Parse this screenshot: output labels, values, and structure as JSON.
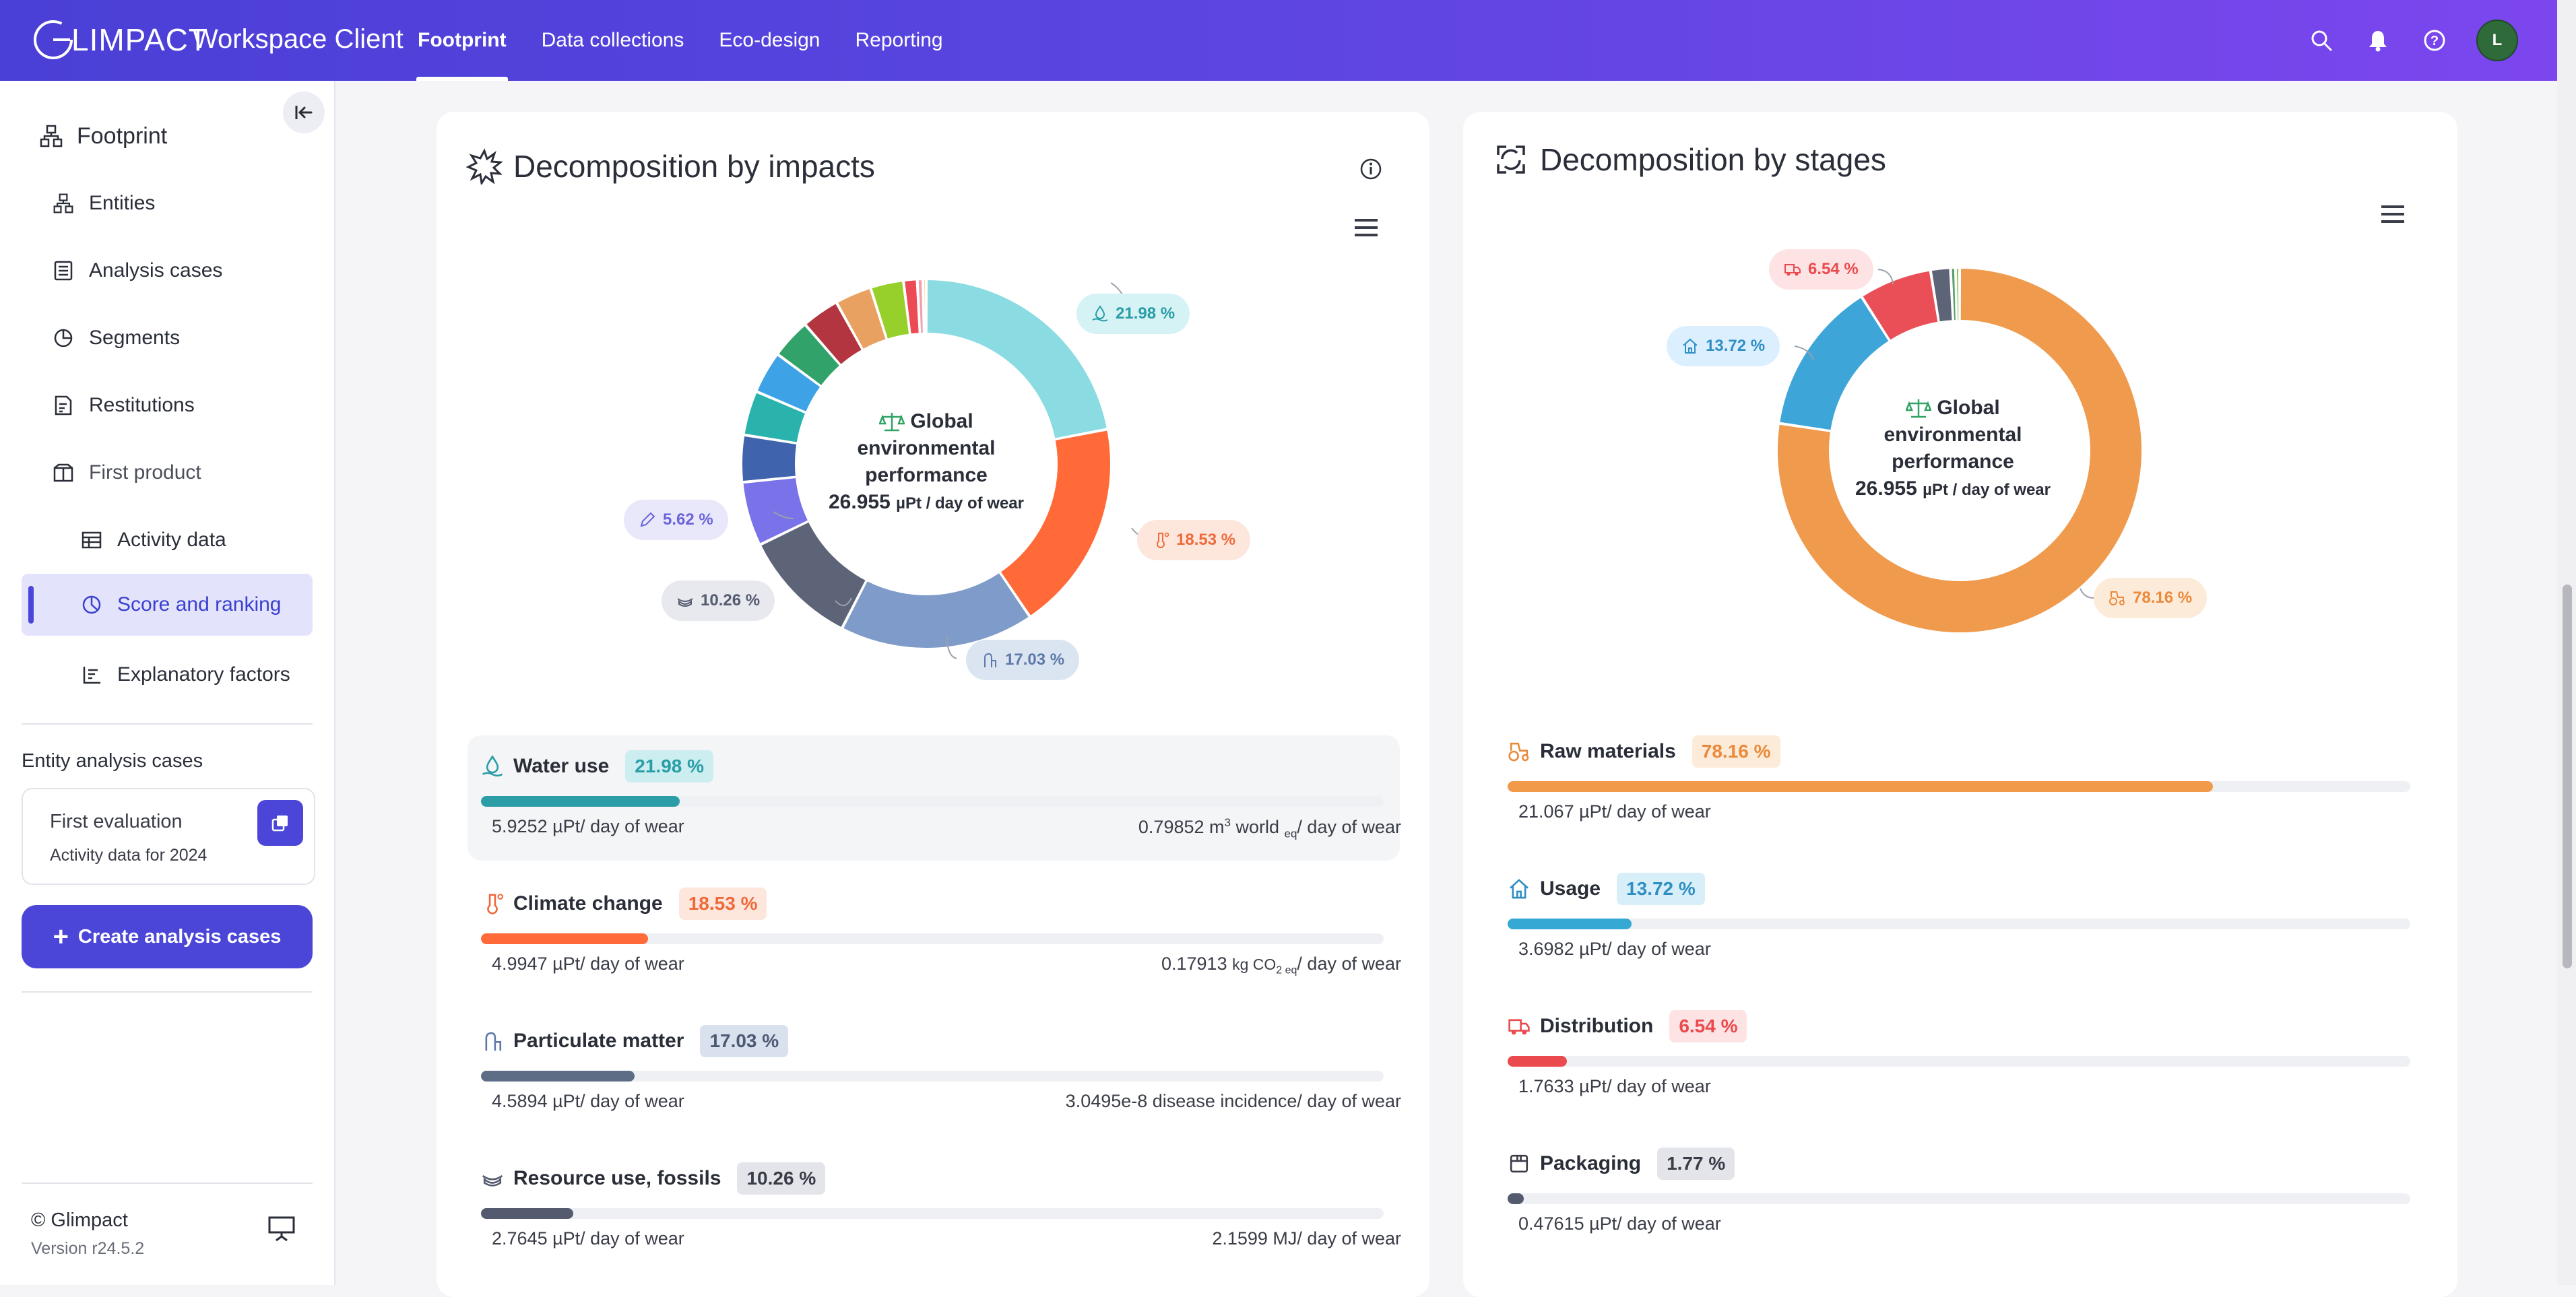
{
  "header": {
    "logo_text": "LIMPACT",
    "app_title": "Workspace Client",
    "nav": [
      {
        "label": "Footprint"
      },
      {
        "label": "Data collections"
      },
      {
        "label": "Eco-design"
      },
      {
        "label": "Reporting"
      }
    ],
    "avatar_initial": "L",
    "colors": {
      "gradient_start": "#4a3fd6",
      "gradient_end": "#7c46ee",
      "avatar": "#2f6b3a"
    }
  },
  "sidebar": {
    "title": "Footprint",
    "items": [
      {
        "label": "Entities",
        "icon": "entities-icon"
      },
      {
        "label": "Analysis cases",
        "icon": "list-icon"
      },
      {
        "label": "Segments",
        "icon": "pie-icon"
      },
      {
        "label": "Restitutions",
        "icon": "report-icon"
      },
      {
        "label": "First product",
        "icon": "product-icon"
      },
      {
        "label": "Activity data",
        "icon": "table-icon"
      },
      {
        "label": "Score and ranking",
        "icon": "score-icon"
      },
      {
        "label": "Explanatory factors",
        "icon": "bar-chart-icon"
      }
    ],
    "section_title": "Entity analysis cases",
    "card": {
      "title": "First evaluation",
      "subtitle": "Activity data for 2024"
    },
    "create_button": "Create analysis cases",
    "footer": {
      "copyright": "© Glimpact",
      "version": "Version r24.5.2"
    }
  },
  "impacts_card": {
    "title": "Decomposition by impacts",
    "center": {
      "line1": "Global",
      "line2": "environmental",
      "line3": "performance",
      "value": "26.955",
      "unit": "µPt / day of wear"
    },
    "labels": [
      {
        "text": "21.98 %",
        "color": "#2a9da7",
        "bg": "#d5f2f4",
        "icon": "water-icon"
      },
      {
        "text": "18.53 %",
        "color": "#ef6a3a",
        "bg": "#fde6dc",
        "icon": "thermometer-icon"
      },
      {
        "text": "17.03 %",
        "color": "#5e79a8",
        "bg": "#dbe5f2",
        "icon": "particulate-icon"
      },
      {
        "text": "10.26 %",
        "color": "#545b6f",
        "bg": "#e7e9ee",
        "icon": "fossil-icon"
      },
      {
        "text": "5.62 %",
        "color": "#6b63d9",
        "bg": "#e9e8fb",
        "icon": "pencil-icon"
      }
    ],
    "rows": [
      {
        "name": "Water use",
        "pct": "21.98 %",
        "fraction": 0.2198,
        "bar_color": "#2a9da7",
        "pct_color": "#2a9da7",
        "pct_bg": "#cdeef1",
        "left": "5.9252 µPt/ day of wear",
        "right": "0.79852 m³ world eq/ day of wear",
        "icon": "water-icon"
      },
      {
        "name": "Climate change",
        "pct": "18.53 %",
        "fraction": 0.1853,
        "bar_color": "#ff6a38",
        "pct_color": "#ef6a3a",
        "pct_bg": "#fde6dc",
        "left": "4.9947 µPt/ day of wear",
        "right": "0.17913 kg CO2 eq/ day of wear",
        "icon": "thermometer-icon"
      },
      {
        "name": "Particulate matter",
        "pct": "17.03 %",
        "fraction": 0.1703,
        "bar_color": "#5d6d85",
        "pct_color": "#4e5a73",
        "pct_bg": "#d9e1ee",
        "left": "4.5894 µPt/ day of wear",
        "right": "3.0495e-8 disease incidence/ day of wear",
        "icon": "particulate-icon"
      },
      {
        "name": "Resource use, fossils",
        "pct": "10.26 %",
        "fraction": 0.1026,
        "bar_color": "#545b6f",
        "pct_color": "#3a3d47",
        "pct_bg": "#e3e5ea",
        "left": "2.7645 µPt/ day of wear",
        "right": "2.1599 MJ/ day of wear",
        "icon": "fossil-icon"
      }
    ]
  },
  "stages_card": {
    "title": "Decomposition by stages",
    "center": {
      "line1": "Global",
      "line2": "environmental",
      "line3": "performance",
      "value": "26.955",
      "unit": "µPt / day of wear"
    },
    "labels": [
      {
        "text": "6.54 %",
        "color": "#ea4a4e",
        "bg": "#fde3e3",
        "icon": "truck-icon"
      },
      {
        "text": "13.72 %",
        "color": "#2f8fc4",
        "bg": "#dcefff",
        "icon": "home-icon"
      },
      {
        "text": "78.16 %",
        "color": "#ea8a3a",
        "bg": "#fdebd9",
        "icon": "tractor-icon"
      }
    ],
    "rows": [
      {
        "name": "Raw materials",
        "pct": "78.16 %",
        "fraction": 0.7816,
        "bar_color": "#f09a4a",
        "pct_color": "#ea8a3a",
        "pct_bg": "#fdebd9",
        "left": "21.067 µPt/ day of wear",
        "icon": "tractor-icon"
      },
      {
        "name": "Usage",
        "pct": "13.72 %",
        "fraction": 0.1372,
        "bar_color": "#36a8d4",
        "pct_color": "#2f8fc4",
        "pct_bg": "#d8eef8",
        "left": "3.6982 µPt/ day of wear",
        "icon": "home-icon"
      },
      {
        "name": "Distribution",
        "pct": "6.54 %",
        "fraction": 0.0654,
        "bar_color": "#ea4a4e",
        "pct_color": "#ea4a4e",
        "pct_bg": "#fde3e3",
        "left": "1.7633 µPt/ day of wear",
        "icon": "truck-icon"
      },
      {
        "name": "Packaging",
        "pct": "1.77 %",
        "fraction": 0.0177,
        "bar_color": "#545b6f",
        "pct_color": "#3a3d47",
        "pct_bg": "#e3e5ea",
        "left": "0.47615 µPt/ day of wear",
        "icon": "package-icon"
      }
    ]
  },
  "chart_data": [
    {
      "type": "pie",
      "title": "Decomposition by impacts",
      "slices": [
        {
          "value": 21.98,
          "color": "#8adbe2"
        },
        {
          "value": 18.53,
          "color": "#ff6a38"
        },
        {
          "value": 17.03,
          "color": "#7f9bc9"
        },
        {
          "value": 10.26,
          "color": "#5d6478"
        },
        {
          "value": 5.62,
          "color": "#7a72e8"
        },
        {
          "value": 4.1,
          "color": "#3f63ad"
        },
        {
          "value": 3.9,
          "color": "#2ab3ad"
        },
        {
          "value": 3.7,
          "color": "#3da3e6"
        },
        {
          "value": 3.5,
          "color": "#31a36a"
        },
        {
          "value": 3.3,
          "color": "#b2353f"
        },
        {
          "value": 3.2,
          "color": "#e8a160"
        },
        {
          "value": 2.9,
          "color": "#97cf2b"
        },
        {
          "value": 1.2,
          "color": "#ee4a55"
        },
        {
          "value": 0.5,
          "color": "#f29fb0"
        },
        {
          "value": 0.28,
          "color": "#f5c542"
        }
      ]
    },
    {
      "type": "pie",
      "title": "Decomposition by stages",
      "slices": [
        {
          "value": 78.16,
          "color": "#ef9a4c"
        },
        {
          "value": 13.72,
          "color": "#3ea5d8"
        },
        {
          "value": 6.54,
          "color": "#ea4f57"
        },
        {
          "value": 1.77,
          "color": "#5d6478"
        },
        {
          "value": 0.45,
          "color": "#5aa06b"
        },
        {
          "value": 0.36,
          "color": "#7fbf55"
        }
      ]
    }
  ]
}
